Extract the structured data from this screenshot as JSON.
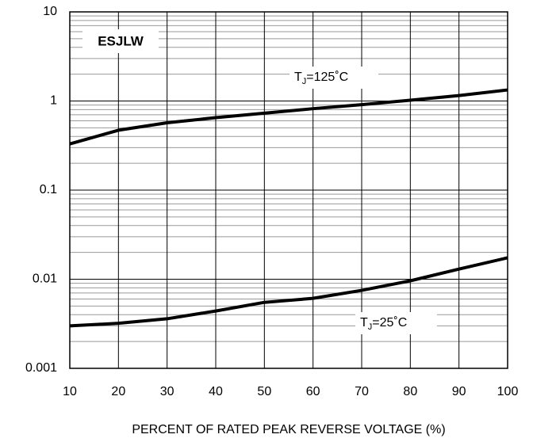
{
  "chart_data": {
    "type": "line",
    "log_y": true,
    "grid": true,
    "badge": "ESJLW",
    "xlabel": "PERCENT OF RATED PEAK REVERSE VOLTAGE (%)",
    "x": [
      10,
      20,
      30,
      40,
      50,
      60,
      70,
      80,
      90,
      100
    ],
    "series": [
      {
        "color": "#000000",
        "values": [
          0.33,
          0.47,
          0.57,
          0.65,
          0.73,
          0.82,
          0.91,
          1.02,
          1.15,
          1.33
        ]
      },
      {
        "color": "#000000",
        "values": [
          0.003,
          0.0032,
          0.0036,
          0.0044,
          0.0055,
          0.0061,
          0.0075,
          0.0096,
          0.013,
          0.0174
        ]
      }
    ],
    "annotations": [
      {
        "base": "T",
        "sub": "J",
        "rest": "=125˚C"
      },
      {
        "base": "T",
        "sub": "J",
        "rest": "=25˚C"
      }
    ],
    "xlim": [
      10,
      100
    ],
    "xticks": [
      10,
      20,
      30,
      40,
      50,
      60,
      70,
      80,
      90,
      100
    ],
    "ylim": [
      0.001,
      10
    ],
    "yticks": [
      0.001,
      0.01,
      0.1,
      1,
      10
    ]
  }
}
